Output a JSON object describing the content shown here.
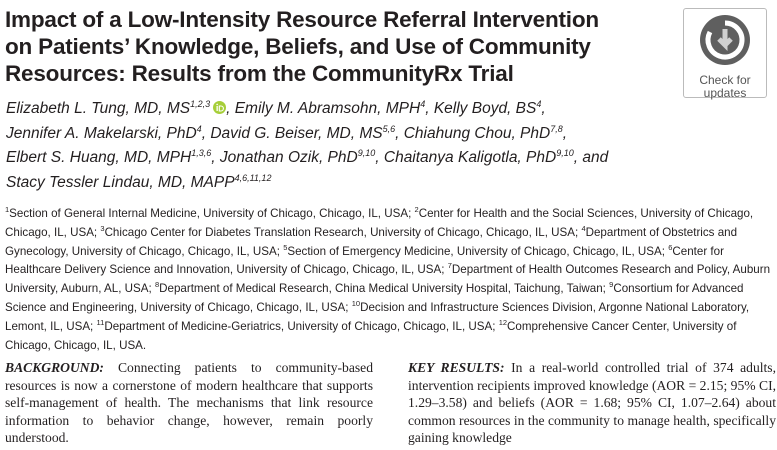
{
  "header": {
    "title_lines": [
      "Impact of a Low-Intensity Resource Referral Intervention",
      "on Patients’ Knowledge, Beliefs, and Use of Community",
      "Resources: Results from the CommunityRx Trial"
    ],
    "badge": {
      "lines": [
        "Check for",
        "updates"
      ]
    }
  },
  "author_lines": [
    [
      {
        "name": "Elizabeth L. Tung, MD, MS",
        "affil": "1,2,3",
        "orcid": true,
        "after": ","
      },
      {
        "name": "Emily M. Abramsohn, MPH",
        "affil": "4",
        "after": ","
      },
      {
        "name": "Kelly Boyd, BS",
        "affil": "4",
        "after": ","
      }
    ],
    [
      {
        "name": "Jennifer A. Makelarski, PhD",
        "affil": "4",
        "after": ","
      },
      {
        "name": "David G. Beiser, MD, MS",
        "affil": "5,6",
        "after": ","
      },
      {
        "name": "Chiahung Chou, PhD",
        "affil": "7,8",
        "after": ","
      }
    ],
    [
      {
        "name": "Elbert S. Huang, MD, MPH",
        "affil": "1,3,6",
        "after": ","
      },
      {
        "name": "Jonathan Ozik, PhD",
        "affil": "9,10",
        "after": ","
      },
      {
        "name": "Chaitanya Kaligotla, PhD",
        "affil": "9,10",
        "after": ", and"
      }
    ],
    [
      {
        "name": "Stacy Tessler Lindau, MD, MAPP",
        "affil": "4,6,11,12"
      }
    ]
  ],
  "affiliations": [
    {
      "sup": "1",
      "text": "Section of General Internal Medicine, University of Chicago, Chicago, IL, USA;"
    },
    {
      "sup": "2",
      "text": "Center for Health and the Social Sciences, University of Chicago, Chicago, IL, USA;"
    },
    {
      "sup": "3",
      "text": "Chicago Center for Diabetes Translation Research, University of Chicago, Chicago, IL, USA;"
    },
    {
      "sup": "4",
      "text": "Department of Obstetrics and Gynecology, University of Chicago, Chicago, IL, USA;"
    },
    {
      "sup": "5",
      "text": "Section of Emergency Medicine, University of Chicago, Chicago, IL, USA;"
    },
    {
      "sup": "6",
      "text": "Center for Healthcare Delivery Science and Innovation, University of Chicago, Chicago, IL, USA;"
    },
    {
      "sup": "7",
      "text": "Department of Health Outcomes Research and Policy, Auburn University, Auburn, AL, USA;"
    },
    {
      "sup": "8",
      "text": "Department of Medical Research, China Medical University Hospital, Taichung, Taiwan;"
    },
    {
      "sup": "9",
      "text": "Consortium for Advanced Science and Engineering, University of Chicago, Chicago, IL, USA;"
    },
    {
      "sup": "10",
      "text": "Decision and Infrastructure Sciences Division, Argonne National Laboratory, Lemont, IL, USA;"
    },
    {
      "sup": "11",
      "text": "Department of Medicine-Geriatrics, University of Chicago, Chicago, IL, USA;"
    },
    {
      "sup": "12",
      "text": "Comprehensive Cancer Center, University of Chicago, Chicago, IL, USA."
    }
  ],
  "abstract": [
    {
      "label": "BACKGROUND:",
      "text": "Connecting patients to community-based resources is now a cornerstone of modern healthcare that supports self-management of health. The mechanisms that link resource information to behavior change, however, remain poorly understood."
    },
    {
      "label": "KEY RESULTS:",
      "text": "In a real-world controlled trial of 374 adults, intervention recipients improved knowledge (AOR = 2.15; 95% CI, 1.29–3.58) and beliefs (AOR = 1.68; 95% CI, 1.07–2.64) about common resources in the community to manage health, specifically gaining knowledge"
    }
  ]
}
